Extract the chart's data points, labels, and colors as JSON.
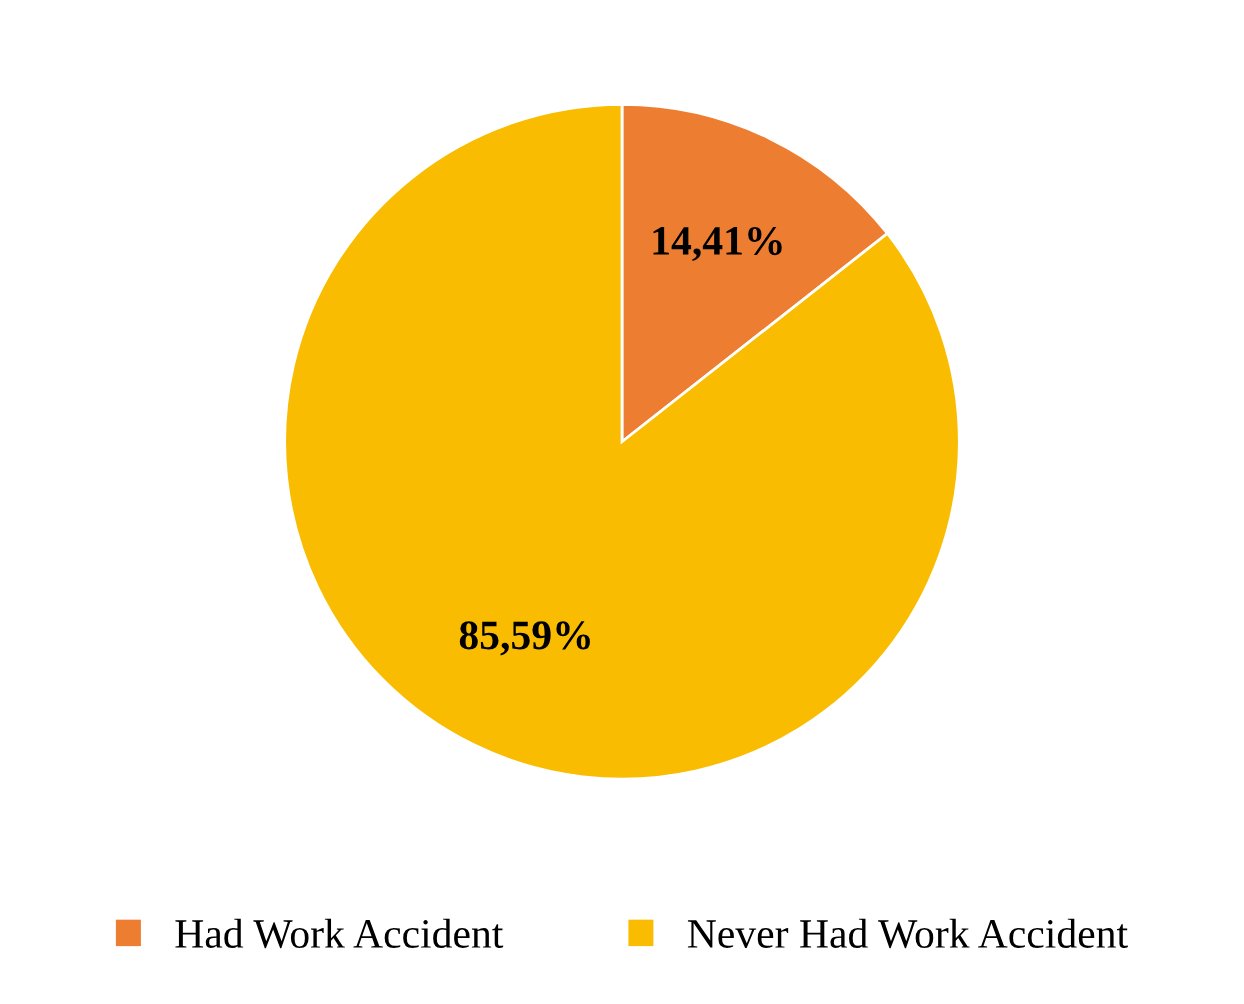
{
  "chart_data": {
    "type": "pie",
    "categories": [
      "Had Work Accident",
      "Never Had Work Accident"
    ],
    "values": [
      14.41,
      85.59
    ],
    "colors": [
      "#ed7d31",
      "#f9bc00"
    ],
    "value_labels": [
      "14,41%",
      "85,59%"
    ],
    "legend": "bottom"
  }
}
